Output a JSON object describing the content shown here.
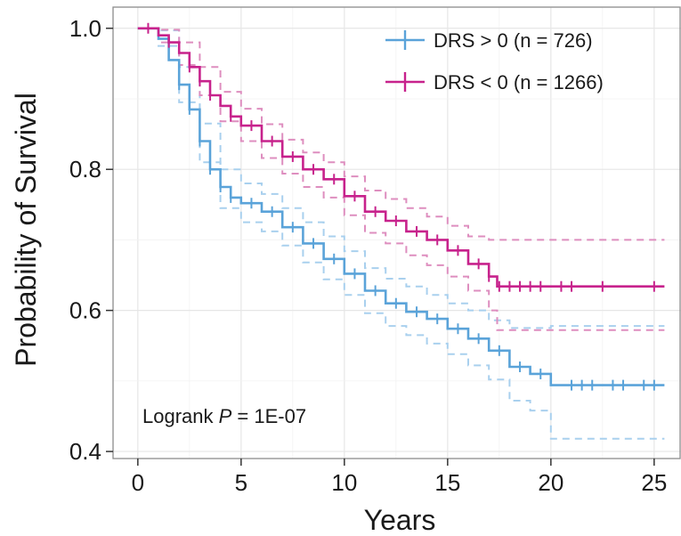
{
  "chart_data": {
    "type": "line",
    "subtype": "kaplan-meier",
    "xlabel": "Years",
    "ylabel": "Probability of Survival",
    "xlim": [
      -1.2,
      26.3
    ],
    "ylim": [
      0.39,
      1.03
    ],
    "xticks": [
      0,
      5,
      10,
      15,
      20,
      25
    ],
    "yticks": [
      0.4,
      0.6,
      0.8,
      1.0
    ],
    "xtick_labels": [
      "0",
      "5",
      "10",
      "15",
      "20",
      "25"
    ],
    "ytick_labels": [
      "0.4",
      "0.6",
      "0.8",
      "1.0"
    ],
    "grid": true,
    "legend_position": "top-right",
    "annotation": {
      "prefix": "Logrank ",
      "symbol": "P",
      "suffix": " = 1E-07"
    },
    "series": [
      {
        "name": "DRS > 0 (n = 726)",
        "color": "#5aa3d9",
        "ci_color": "#a9d0ee",
        "points": [
          [
            0,
            1.0
          ],
          [
            0.5,
            1.0
          ],
          [
            1.0,
            0.985
          ],
          [
            1.5,
            0.955
          ],
          [
            2.0,
            0.92
          ],
          [
            2.5,
            0.885
          ],
          [
            3.0,
            0.84
          ],
          [
            3.5,
            0.8
          ],
          [
            4.0,
            0.775
          ],
          [
            4.5,
            0.76
          ],
          [
            5.0,
            0.752
          ],
          [
            6.0,
            0.74
          ],
          [
            7.0,
            0.718
          ],
          [
            8.0,
            0.695
          ],
          [
            9.0,
            0.673
          ],
          [
            10.0,
            0.652
          ],
          [
            11.0,
            0.628
          ],
          [
            12.0,
            0.61
          ],
          [
            13.0,
            0.598
          ],
          [
            14.0,
            0.588
          ],
          [
            15.0,
            0.574
          ],
          [
            16.0,
            0.56
          ],
          [
            17.0,
            0.543
          ],
          [
            18.0,
            0.52
          ],
          [
            19.0,
            0.51
          ],
          [
            20.0,
            0.494
          ],
          [
            25.5,
            0.494
          ]
        ],
        "ci_upper": [
          [
            0,
            1.0
          ],
          [
            1.0,
            0.997
          ],
          [
            2.0,
            0.945
          ],
          [
            3.0,
            0.865
          ],
          [
            4.0,
            0.8
          ],
          [
            5.0,
            0.78
          ],
          [
            6.0,
            0.765
          ],
          [
            7.0,
            0.745
          ],
          [
            8.0,
            0.725
          ],
          [
            9.0,
            0.705
          ],
          [
            10.0,
            0.684
          ],
          [
            11.0,
            0.66
          ],
          [
            12.0,
            0.645
          ],
          [
            13.0,
            0.634
          ],
          [
            14.0,
            0.622
          ],
          [
            15.0,
            0.61
          ],
          [
            16.0,
            0.6
          ],
          [
            17.0,
            0.586
          ],
          [
            18.0,
            0.575
          ],
          [
            20.0,
            0.578
          ],
          [
            25.5,
            0.578
          ]
        ],
        "ci_lower": [
          [
            0,
            1.0
          ],
          [
            1.0,
            0.975
          ],
          [
            2.0,
            0.895
          ],
          [
            3.0,
            0.81
          ],
          [
            4.0,
            0.745
          ],
          [
            5.0,
            0.725
          ],
          [
            6.0,
            0.712
          ],
          [
            7.0,
            0.692
          ],
          [
            8.0,
            0.668
          ],
          [
            9.0,
            0.644
          ],
          [
            10.0,
            0.622
          ],
          [
            11.0,
            0.596
          ],
          [
            12.0,
            0.578
          ],
          [
            13.0,
            0.565
          ],
          [
            14.0,
            0.553
          ],
          [
            15.0,
            0.538
          ],
          [
            16.0,
            0.522
          ],
          [
            17.0,
            0.502
          ],
          [
            18.0,
            0.472
          ],
          [
            19.0,
            0.458
          ],
          [
            20.0,
            0.418
          ],
          [
            25.5,
            0.418
          ]
        ],
        "censor_x": [
          2.0,
          2.5,
          3.0,
          3.5,
          4.0,
          4.5,
          5.5,
          6.5,
          7.5,
          8.5,
          9.5,
          10.5,
          11.5,
          12.5,
          13.5,
          14.5,
          15.5,
          16.5,
          17.5,
          18.5,
          19.5,
          21.0,
          21.5,
          22.0,
          23.0,
          23.5,
          24.5,
          25.0
        ]
      },
      {
        "name": "DRS < 0 (n = 1266)",
        "color": "#c7228c",
        "ci_color": "#de8ebf",
        "points": [
          [
            0,
            1.0
          ],
          [
            0.5,
            1.0
          ],
          [
            1.0,
            0.99
          ],
          [
            1.5,
            0.98
          ],
          [
            2.0,
            0.965
          ],
          [
            2.5,
            0.945
          ],
          [
            3.0,
            0.925
          ],
          [
            3.5,
            0.905
          ],
          [
            4.0,
            0.89
          ],
          [
            4.5,
            0.875
          ],
          [
            5.0,
            0.862
          ],
          [
            6.0,
            0.84
          ],
          [
            7.0,
            0.818
          ],
          [
            8.0,
            0.8
          ],
          [
            9.0,
            0.786
          ],
          [
            10.0,
            0.762
          ],
          [
            11.0,
            0.74
          ],
          [
            12.0,
            0.727
          ],
          [
            13.0,
            0.712
          ],
          [
            14.0,
            0.7
          ],
          [
            15.0,
            0.685
          ],
          [
            16.0,
            0.666
          ],
          [
            17.0,
            0.648
          ],
          [
            17.4,
            0.634
          ],
          [
            25.5,
            0.634
          ]
        ],
        "ci_upper": [
          [
            0,
            1.0
          ],
          [
            1.0,
            0.998
          ],
          [
            2.0,
            0.98
          ],
          [
            3.0,
            0.945
          ],
          [
            4.0,
            0.91
          ],
          [
            5.0,
            0.886
          ],
          [
            6.0,
            0.864
          ],
          [
            7.0,
            0.842
          ],
          [
            8.0,
            0.824
          ],
          [
            9.0,
            0.81
          ],
          [
            10.0,
            0.79
          ],
          [
            11.0,
            0.77
          ],
          [
            12.0,
            0.758
          ],
          [
            13.0,
            0.745
          ],
          [
            14.0,
            0.733
          ],
          [
            15.0,
            0.72
          ],
          [
            16.0,
            0.705
          ],
          [
            17.0,
            0.7
          ],
          [
            25.5,
            0.7
          ]
        ],
        "ci_lower": [
          [
            0,
            1.0
          ],
          [
            1.0,
            0.98
          ],
          [
            2.0,
            0.948
          ],
          [
            3.0,
            0.905
          ],
          [
            4.0,
            0.868
          ],
          [
            5.0,
            0.84
          ],
          [
            6.0,
            0.816
          ],
          [
            7.0,
            0.794
          ],
          [
            8.0,
            0.775
          ],
          [
            9.0,
            0.76
          ],
          [
            10.0,
            0.735
          ],
          [
            11.0,
            0.71
          ],
          [
            12.0,
            0.695
          ],
          [
            13.0,
            0.678
          ],
          [
            14.0,
            0.664
          ],
          [
            15.0,
            0.648
          ],
          [
            16.0,
            0.628
          ],
          [
            17.0,
            0.6
          ],
          [
            17.4,
            0.572
          ],
          [
            25.5,
            0.572
          ]
        ],
        "censor_x": [
          0.5,
          1.5,
          2.5,
          3.0,
          3.5,
          4.5,
          5.5,
          6.5,
          7.5,
          8.5,
          9.5,
          10.5,
          11.5,
          12.5,
          13.5,
          14.5,
          15.5,
          16.5,
          17.0,
          17.5,
          18.0,
          18.5,
          19.0,
          19.5,
          20.5,
          21.0,
          22.5,
          25.0
        ]
      }
    ]
  }
}
